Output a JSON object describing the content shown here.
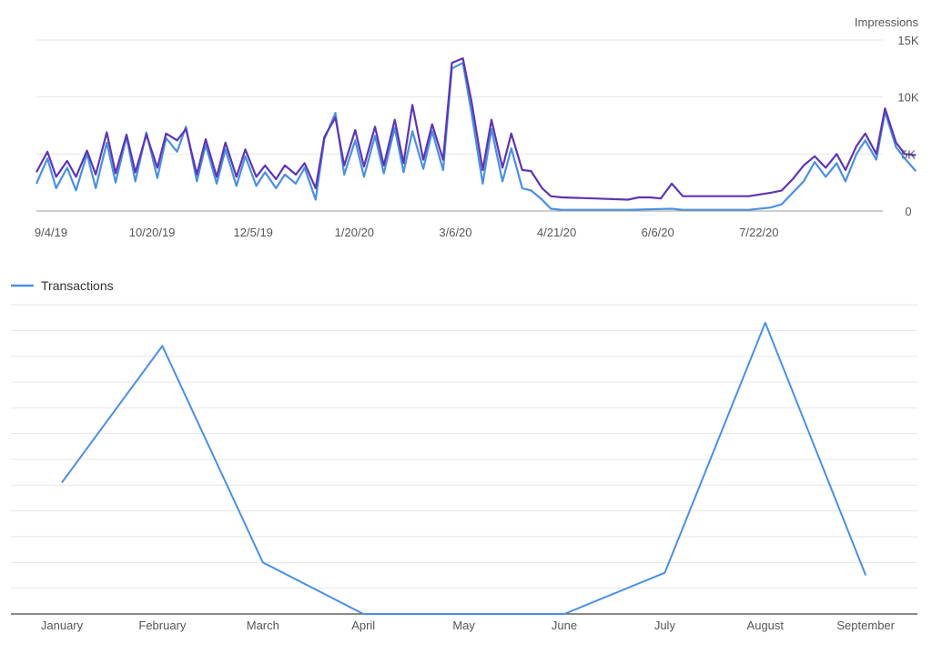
{
  "chart_data": [
    {
      "type": "line",
      "ylabel": "Impressions",
      "ylim": [
        0,
        15000
      ],
      "y_ticks": [
        0,
        5000,
        10000,
        15000
      ],
      "y_tick_labels": [
        "0",
        "5K",
        "10K",
        "15K"
      ],
      "y_axis_side": "right",
      "grid": true,
      "x_tick_labels": [
        "9/4/19",
        "10/20/19",
        "12/5/19",
        "1/20/20",
        "3/6/20",
        "4/21/20",
        "6/6/20",
        "7/22/20"
      ],
      "x_start": "2019-09-04",
      "x_end": "2020-09-23",
      "series_colors": [
        "#5e35b1",
        "#4a90e2"
      ],
      "series": [
        {
          "values": [
            {
              "x": "2019-09-04",
              "y": 3400
            },
            {
              "x": "2019-09-09",
              "y": 5200
            },
            {
              "x": "2019-09-13",
              "y": 3000
            },
            {
              "x": "2019-09-18",
              "y": 4400
            },
            {
              "x": "2019-09-22",
              "y": 3000
            },
            {
              "x": "2019-09-27",
              "y": 5300
            },
            {
              "x": "2019-10-01",
              "y": 3200
            },
            {
              "x": "2019-10-06",
              "y": 6900
            },
            {
              "x": "2019-10-10",
              "y": 3300
            },
            {
              "x": "2019-10-15",
              "y": 6700
            },
            {
              "x": "2019-10-19",
              "y": 3400
            },
            {
              "x": "2019-10-24",
              "y": 6700
            },
            {
              "x": "2019-10-29",
              "y": 3800
            },
            {
              "x": "2019-11-02",
              "y": 6800
            },
            {
              "x": "2019-11-07",
              "y": 6200
            },
            {
              "x": "2019-11-11",
              "y": 7200
            },
            {
              "x": "2019-11-16",
              "y": 3200
            },
            {
              "x": "2019-11-20",
              "y": 6300
            },
            {
              "x": "2019-11-25",
              "y": 3000
            },
            {
              "x": "2019-11-29",
              "y": 6000
            },
            {
              "x": "2019-12-04",
              "y": 3000
            },
            {
              "x": "2019-12-08",
              "y": 5400
            },
            {
              "x": "2019-12-13",
              "y": 3000
            },
            {
              "x": "2019-12-17",
              "y": 4000
            },
            {
              "x": "2019-12-22",
              "y": 2800
            },
            {
              "x": "2019-12-26",
              "y": 4000
            },
            {
              "x": "2019-12-31",
              "y": 3200
            },
            {
              "x": "2020-01-04",
              "y": 4200
            },
            {
              "x": "2020-01-09",
              "y": 2000
            },
            {
              "x": "2020-01-13",
              "y": 6500
            },
            {
              "x": "2020-01-18",
              "y": 8200
            },
            {
              "x": "2020-01-22",
              "y": 4000
            },
            {
              "x": "2020-01-27",
              "y": 7100
            },
            {
              "x": "2020-01-31",
              "y": 3900
            },
            {
              "x": "2020-02-05",
              "y": 7400
            },
            {
              "x": "2020-02-09",
              "y": 4000
            },
            {
              "x": "2020-02-14",
              "y": 8000
            },
            {
              "x": "2020-02-18",
              "y": 4200
            },
            {
              "x": "2020-02-22",
              "y": 9300
            },
            {
              "x": "2020-02-27",
              "y": 4500
            },
            {
              "x": "2020-03-02",
              "y": 7600
            },
            {
              "x": "2020-03-07",
              "y": 4500
            },
            {
              "x": "2020-03-11",
              "y": 13000
            },
            {
              "x": "2020-03-16",
              "y": 13400
            },
            {
              "x": "2020-03-20",
              "y": 9500
            },
            {
              "x": "2020-03-25",
              "y": 3600
            },
            {
              "x": "2020-03-29",
              "y": 8000
            },
            {
              "x": "2020-04-03",
              "y": 3800
            },
            {
              "x": "2020-04-07",
              "y": 6800
            },
            {
              "x": "2020-04-12",
              "y": 3600
            },
            {
              "x": "2020-04-16",
              "y": 3500
            },
            {
              "x": "2020-04-21",
              "y": 2000
            },
            {
              "x": "2020-04-25",
              "y": 1300
            },
            {
              "x": "2020-04-30",
              "y": 1200
            },
            {
              "x": "2020-05-15",
              "y": 1100
            },
            {
              "x": "2020-05-30",
              "y": 1000
            },
            {
              "x": "2020-06-04",
              "y": 1200
            },
            {
              "x": "2020-06-09",
              "y": 1200
            },
            {
              "x": "2020-06-14",
              "y": 1100
            },
            {
              "x": "2020-06-19",
              "y": 2400
            },
            {
              "x": "2020-06-24",
              "y": 1300
            },
            {
              "x": "2020-07-09",
              "y": 1300
            },
            {
              "x": "2020-07-24",
              "y": 1300
            },
            {
              "x": "2020-08-03",
              "y": 1600
            },
            {
              "x": "2020-08-08",
              "y": 1800
            },
            {
              "x": "2020-08-13",
              "y": 2800
            },
            {
              "x": "2020-08-18",
              "y": 4000
            },
            {
              "x": "2020-08-23",
              "y": 4800
            },
            {
              "x": "2020-08-28",
              "y": 3800
            },
            {
              "x": "2020-09-02",
              "y": 5000
            },
            {
              "x": "2020-09-06",
              "y": 3600
            },
            {
              "x": "2020-09-11",
              "y": 5700
            },
            {
              "x": "2020-09-15",
              "y": 6800
            },
            {
              "x": "2020-09-20",
              "y": 5000
            },
            {
              "x": "2020-09-24",
              "y": 9000
            },
            {
              "x": "2020-09-29",
              "y": 6000
            },
            {
              "x": "2020-10-03",
              "y": 5000
            },
            {
              "x": "2020-10-08",
              "y": 4900
            }
          ]
        },
        {
          "values": [
            {
              "x": "2019-09-04",
              "y": 2400
            },
            {
              "x": "2019-09-09",
              "y": 4600
            },
            {
              "x": "2019-09-13",
              "y": 2000
            },
            {
              "x": "2019-09-18",
              "y": 3800
            },
            {
              "x": "2019-09-22",
              "y": 1800
            },
            {
              "x": "2019-09-27",
              "y": 5000
            },
            {
              "x": "2019-10-01",
              "y": 2000
            },
            {
              "x": "2019-10-06",
              "y": 6000
            },
            {
              "x": "2019-10-10",
              "y": 2500
            },
            {
              "x": "2019-10-15",
              "y": 6500
            },
            {
              "x": "2019-10-19",
              "y": 2600
            },
            {
              "x": "2019-10-24",
              "y": 6900
            },
            {
              "x": "2019-10-29",
              "y": 2900
            },
            {
              "x": "2019-11-02",
              "y": 6400
            },
            {
              "x": "2019-11-07",
              "y": 5200
            },
            {
              "x": "2019-11-11",
              "y": 7400
            },
            {
              "x": "2019-11-16",
              "y": 2600
            },
            {
              "x": "2019-11-20",
              "y": 5800
            },
            {
              "x": "2019-11-25",
              "y": 2400
            },
            {
              "x": "2019-11-29",
              "y": 5400
            },
            {
              "x": "2019-12-04",
              "y": 2200
            },
            {
              "x": "2019-12-08",
              "y": 4800
            },
            {
              "x": "2019-12-13",
              "y": 2200
            },
            {
              "x": "2019-12-17",
              "y": 3400
            },
            {
              "x": "2019-12-22",
              "y": 2000
            },
            {
              "x": "2019-12-26",
              "y": 3200
            },
            {
              "x": "2019-12-31",
              "y": 2400
            },
            {
              "x": "2020-01-04",
              "y": 3800
            },
            {
              "x": "2020-01-09",
              "y": 1000
            },
            {
              "x": "2020-01-13",
              "y": 6300
            },
            {
              "x": "2020-01-18",
              "y": 8600
            },
            {
              "x": "2020-01-22",
              "y": 3200
            },
            {
              "x": "2020-01-27",
              "y": 6200
            },
            {
              "x": "2020-01-31",
              "y": 3000
            },
            {
              "x": "2020-02-05",
              "y": 6600
            },
            {
              "x": "2020-02-09",
              "y": 3300
            },
            {
              "x": "2020-02-14",
              "y": 7300
            },
            {
              "x": "2020-02-18",
              "y": 3400
            },
            {
              "x": "2020-02-22",
              "y": 7000
            },
            {
              "x": "2020-02-27",
              "y": 3700
            },
            {
              "x": "2020-03-02",
              "y": 7000
            },
            {
              "x": "2020-03-07",
              "y": 3600
            },
            {
              "x": "2020-03-11",
              "y": 12500
            },
            {
              "x": "2020-03-16",
              "y": 13000
            },
            {
              "x": "2020-03-20",
              "y": 8500
            },
            {
              "x": "2020-03-25",
              "y": 2400
            },
            {
              "x": "2020-03-29",
              "y": 7200
            },
            {
              "x": "2020-04-03",
              "y": 2600
            },
            {
              "x": "2020-04-07",
              "y": 5500
            },
            {
              "x": "2020-04-12",
              "y": 2000
            },
            {
              "x": "2020-04-16",
              "y": 1800
            },
            {
              "x": "2020-04-21",
              "y": 1000
            },
            {
              "x": "2020-04-25",
              "y": 200
            },
            {
              "x": "2020-04-30",
              "y": 100
            },
            {
              "x": "2020-05-30",
              "y": 100
            },
            {
              "x": "2020-06-19",
              "y": 200
            },
            {
              "x": "2020-06-24",
              "y": 100
            },
            {
              "x": "2020-07-24",
              "y": 100
            },
            {
              "x": "2020-08-03",
              "y": 300
            },
            {
              "x": "2020-08-08",
              "y": 600
            },
            {
              "x": "2020-08-13",
              "y": 1600
            },
            {
              "x": "2020-08-18",
              "y": 2600
            },
            {
              "x": "2020-08-23",
              "y": 4300
            },
            {
              "x": "2020-08-28",
              "y": 3000
            },
            {
              "x": "2020-09-02",
              "y": 4200
            },
            {
              "x": "2020-09-06",
              "y": 2600
            },
            {
              "x": "2020-09-11",
              "y": 5000
            },
            {
              "x": "2020-09-15",
              "y": 6200
            },
            {
              "x": "2020-09-20",
              "y": 4500
            },
            {
              "x": "2020-09-24",
              "y": 8700
            },
            {
              "x": "2020-09-29",
              "y": 5600
            },
            {
              "x": "2020-10-03",
              "y": 4600
            },
            {
              "x": "2020-10-08",
              "y": 3500
            }
          ]
        }
      ]
    },
    {
      "type": "line",
      "categories": [
        "January",
        "February",
        "March",
        "April",
        "May",
        "June",
        "July",
        "August",
        "September"
      ],
      "series": [
        {
          "name": "Transactions",
          "values": [
            51,
            104,
            20,
            0,
            0,
            0,
            16,
            113,
            15
          ],
          "color": "#4a90e2"
        }
      ],
      "ylim": [
        0,
        120
      ],
      "grid": true,
      "legend_position": "top-left"
    }
  ]
}
